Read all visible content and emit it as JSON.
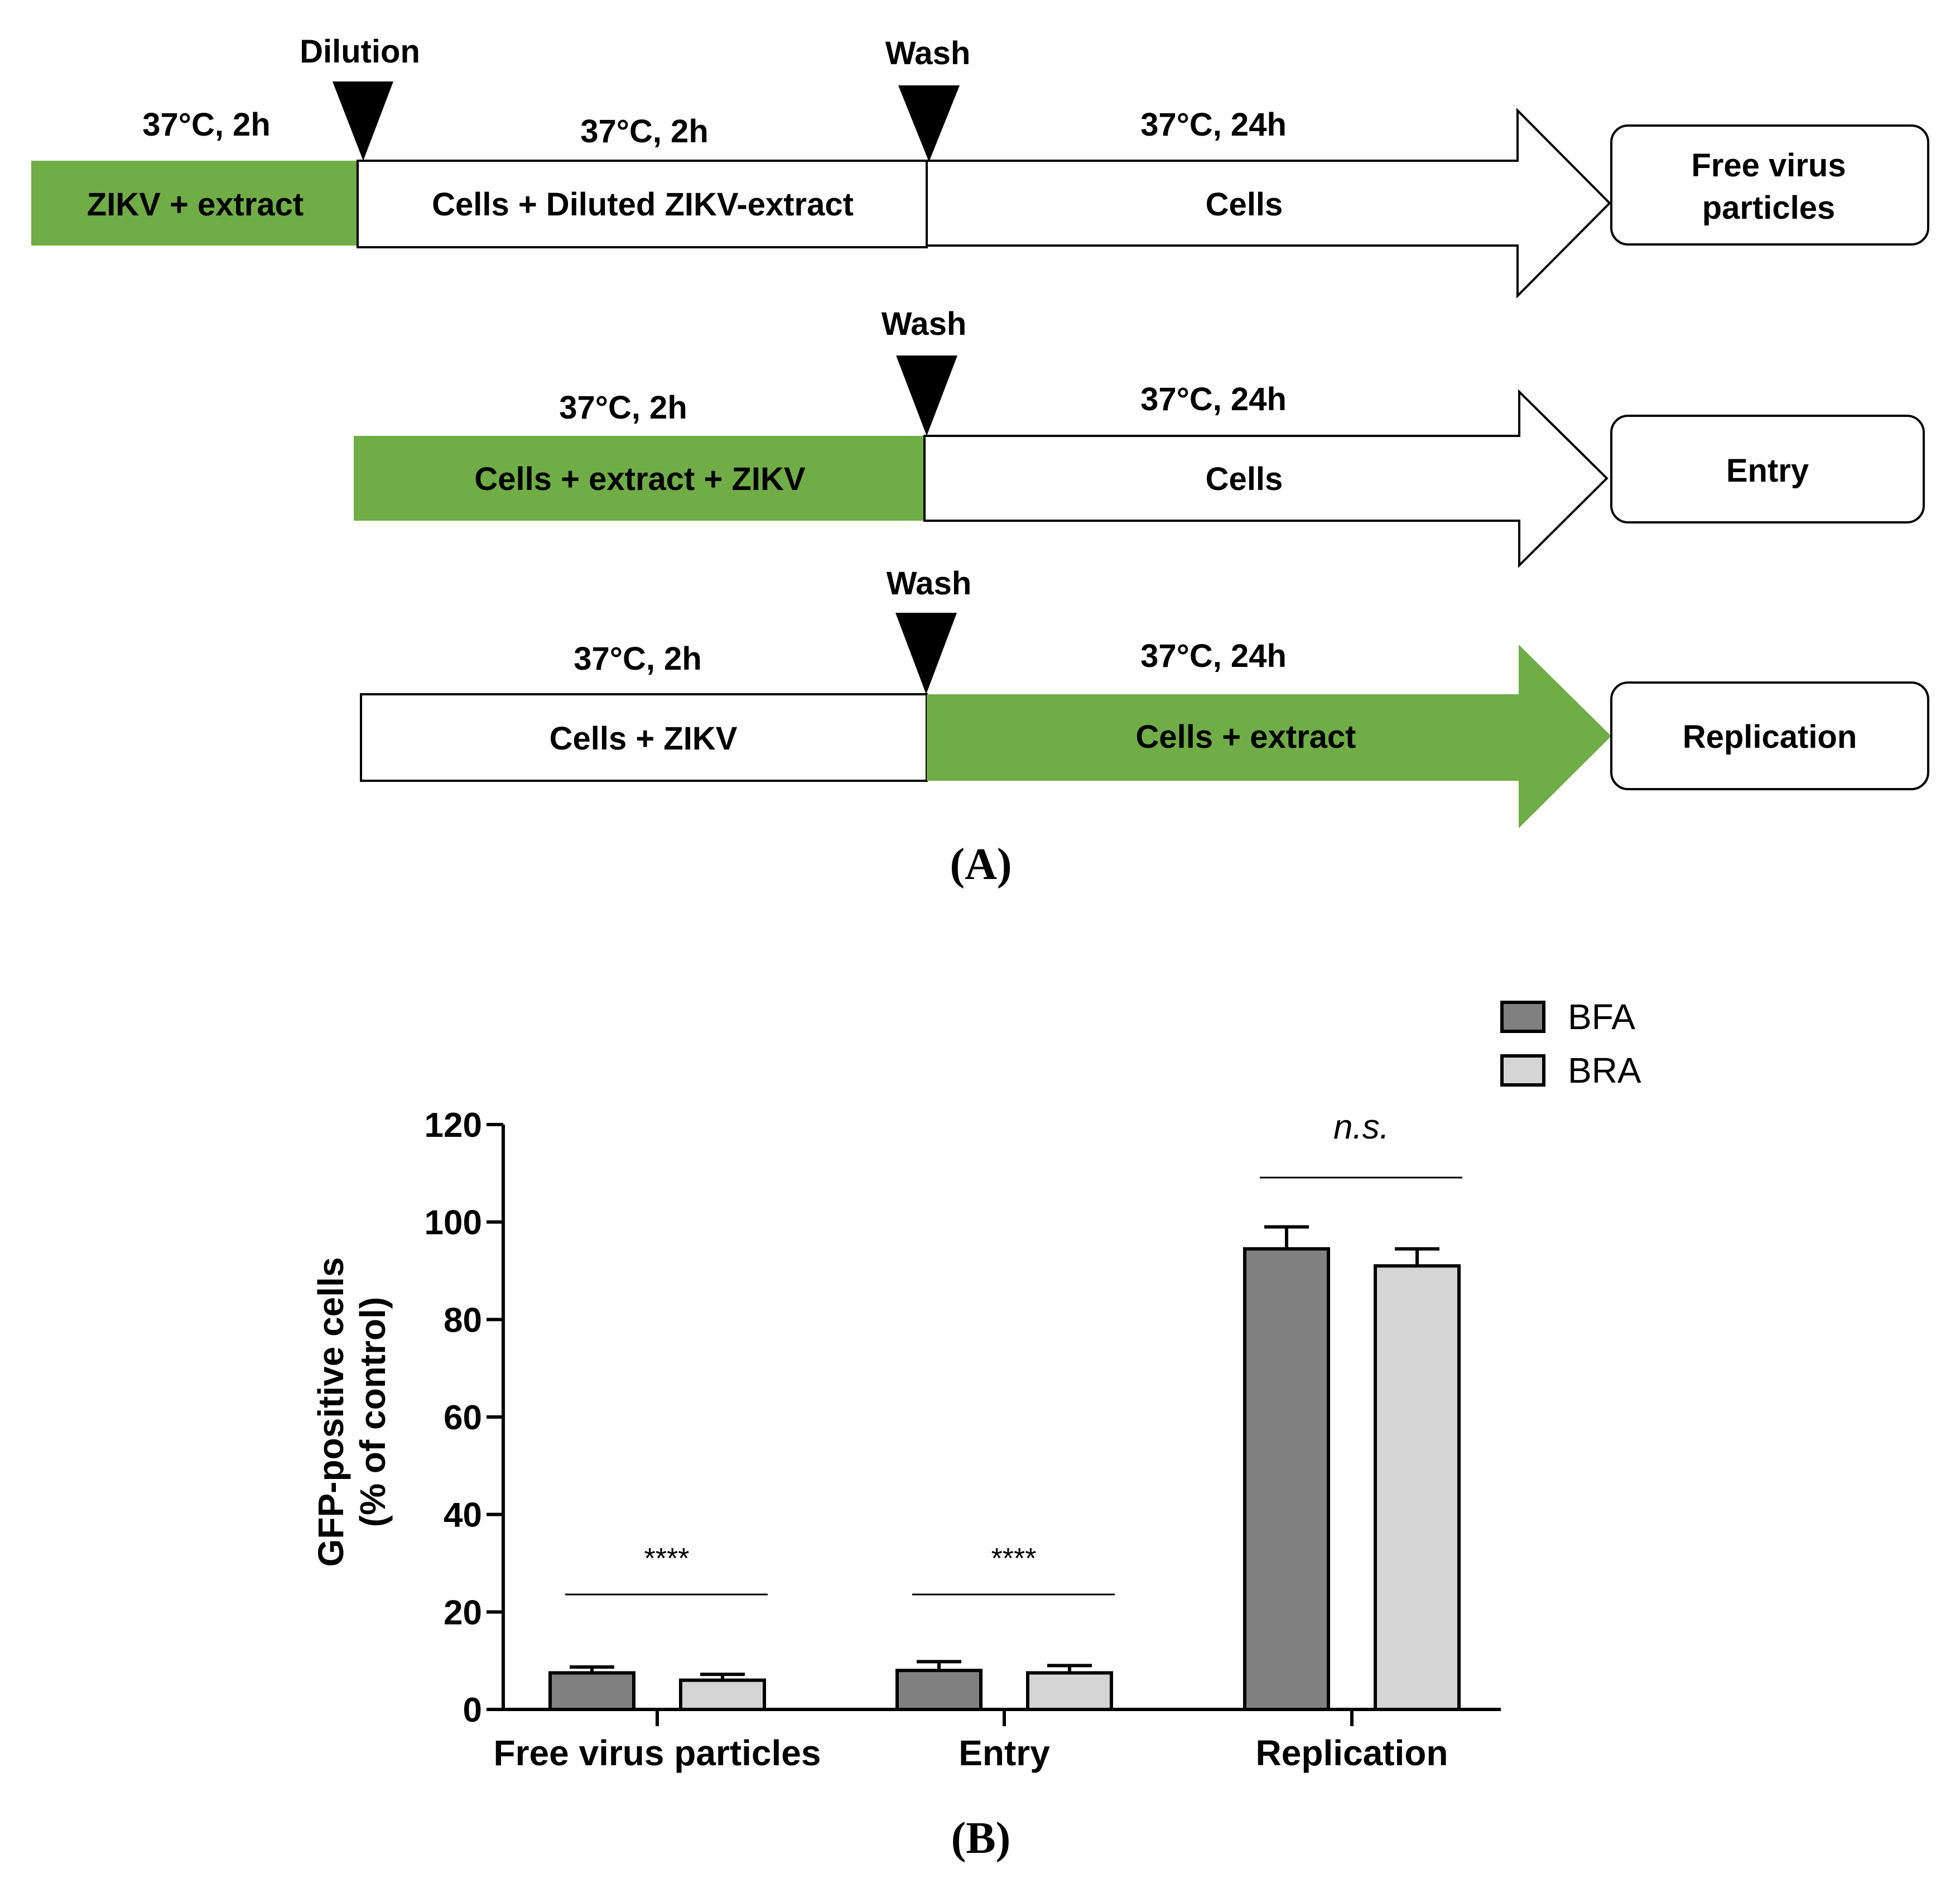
{
  "colors": {
    "green": "#70ad47",
    "black": "#000000",
    "white": "#ffffff",
    "bfa": "#808080",
    "bra": "#d4d4d4"
  },
  "panel_a": {
    "label": "(A)",
    "row1": {
      "marker_dilution": "Dilution",
      "marker_wash": "Wash",
      "seg1_time": "37°C, 2h",
      "seg1_text": "ZIKV + extract",
      "seg2_time": "37°C, 2h",
      "seg2_text": "Cells + Diluted ZIKV-extract",
      "seg3_time": "37°C, 24h",
      "seg3_text": "Cells",
      "outcome_line1": "Free virus",
      "outcome_line2": "particles"
    },
    "row2": {
      "marker_wash": "Wash",
      "seg1_time": "37°C, 2h",
      "seg1_text": "Cells + extract + ZIKV",
      "seg2_time": "37°C, 24h",
      "seg2_text": "Cells",
      "outcome": "Entry"
    },
    "row3": {
      "marker_wash": "Wash",
      "seg1_time": "37°C, 2h",
      "seg1_text": "Cells + ZIKV",
      "seg2_time": "37°C, 24h",
      "seg2_text": "Cells + extract",
      "outcome": "Replication"
    }
  },
  "panel_b": {
    "label": "(B)"
  },
  "chart_data": {
    "type": "bar",
    "title": "",
    "xlabel": "",
    "ylabel_line1": "GFP-positive cells",
    "ylabel_line2": "(% of control)",
    "ylim": [
      0,
      120
    ],
    "yticks": [
      0,
      20,
      40,
      60,
      80,
      100,
      120
    ],
    "categories": [
      "Free virus particles",
      "Entry",
      "Replication"
    ],
    "series": [
      {
        "name": "BFA",
        "values": [
          7.5,
          8,
          94.5
        ],
        "errors": [
          1.2,
          1.8,
          4.5
        ]
      },
      {
        "name": "BRA",
        "values": [
          6,
          7.5,
          91
        ],
        "errors": [
          1.2,
          1.5,
          3.5
        ]
      }
    ],
    "significance": [
      "****",
      "****",
      "n.s."
    ],
    "legend_position": "top-right"
  }
}
